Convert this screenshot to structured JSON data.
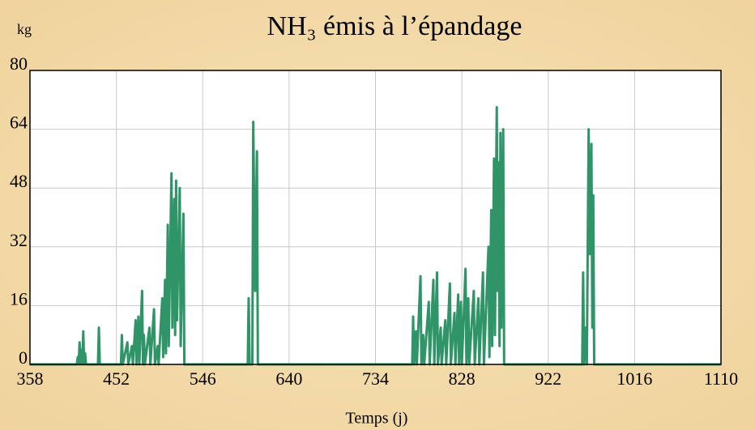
{
  "chart_data": {
    "type": "line",
    "title": "NH₃ émis à l’épandage",
    "ylabel": "kg",
    "xlabel": "Temps (j)",
    "color": "#2f9467",
    "grid": true,
    "xlim": [
      358,
      1110
    ],
    "xticks": [
      358,
      452,
      546,
      640,
      734,
      828,
      922,
      1016,
      1110
    ],
    "ylim": [
      0,
      80
    ],
    "yticks": [
      0,
      16,
      32,
      48,
      64,
      80
    ],
    "x": [
      358,
      409,
      410,
      411,
      412,
      413,
      414,
      415,
      416,
      417,
      418,
      419,
      432,
      433,
      434,
      457,
      458,
      459,
      464,
      465,
      469,
      470,
      473,
      474,
      476,
      477,
      480,
      481,
      482,
      483,
      488,
      489,
      493,
      494,
      497,
      498,
      502,
      503,
      505,
      506,
      508,
      509,
      512,
      513,
      515,
      516,
      517,
      518,
      521,
      522,
      525,
      526,
      595,
      596,
      597,
      600,
      601,
      603,
      605,
      606,
      774,
      775,
      776,
      778,
      779,
      783,
      784,
      786,
      787,
      792,
      793,
      797,
      798,
      801,
      802,
      805,
      806,
      810,
      811,
      815,
      816,
      820,
      821,
      824,
      825,
      827,
      828,
      832,
      833,
      835,
      836,
      841,
      842,
      846,
      847,
      851,
      852,
      857,
      858,
      860,
      861,
      863,
      864,
      866,
      867,
      868,
      869,
      870,
      871,
      873,
      874,
      959,
      960,
      961,
      963,
      964,
      966,
      967,
      969,
      970,
      971,
      972,
      1110
    ],
    "values": [
      0,
      0,
      2,
      0,
      6,
      0,
      4,
      0,
      9,
      0,
      3,
      0,
      0,
      10,
      0,
      0,
      8,
      0,
      6,
      0,
      5,
      0,
      12,
      0,
      13,
      0,
      20,
      0,
      8,
      0,
      10,
      0,
      15,
      0,
      5,
      0,
      18,
      2,
      23,
      3,
      38,
      5,
      52,
      10,
      45,
      8,
      50,
      12,
      48,
      5,
      41,
      0,
      0,
      18,
      0,
      0,
      66,
      20,
      58,
      0,
      0,
      13,
      0,
      9,
      0,
      24,
      0,
      8,
      0,
      17,
      0,
      23,
      0,
      25,
      0,
      10,
      0,
      12,
      0,
      22,
      0,
      14,
      0,
      19,
      0,
      17,
      0,
      26,
      0,
      18,
      0,
      20,
      0,
      18,
      0,
      25,
      0,
      32,
      2,
      42,
      5,
      56,
      8,
      70,
      20,
      55,
      5,
      63,
      10,
      64,
      0,
      0,
      25,
      0,
      10,
      0,
      64,
      30,
      60,
      10,
      46,
      0,
      0
    ]
  }
}
